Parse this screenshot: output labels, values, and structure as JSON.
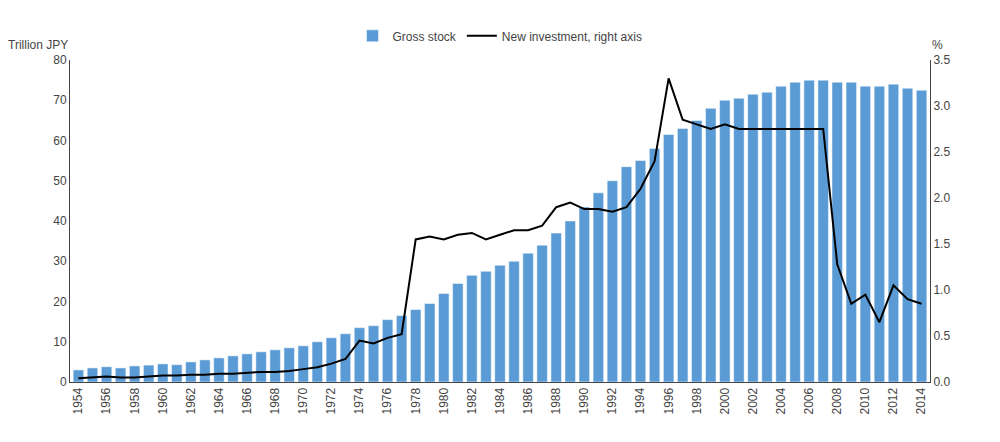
{
  "chart_data": {
    "type": "bar",
    "ylabel": "Trillion JPY",
    "y2label": "%",
    "x": [
      1954,
      1955,
      1956,
      1957,
      1958,
      1959,
      1960,
      1961,
      1962,
      1963,
      1964,
      1965,
      1966,
      1967,
      1968,
      1969,
      1970,
      1971,
      1972,
      1973,
      1974,
      1975,
      1976,
      1977,
      1978,
      1979,
      1980,
      1981,
      1982,
      1983,
      1984,
      1985,
      1986,
      1987,
      1988,
      1989,
      1990,
      1991,
      1992,
      1993,
      1994,
      1995,
      1996,
      1997,
      1998,
      1999,
      2000,
      2001,
      2002,
      2003,
      2004,
      2005,
      2006,
      2007,
      2008,
      2009,
      2010,
      2011,
      2012,
      2013,
      2014
    ],
    "series": [
      {
        "name": "Gross stock",
        "type": "bar",
        "color": "#5b9bd5",
        "values": [
          3.0,
          3.5,
          3.8,
          3.5,
          4.0,
          4.2,
          4.5,
          4.3,
          5.0,
          5.5,
          6.0,
          6.5,
          7.0,
          7.5,
          8.0,
          8.5,
          9.0,
          10.0,
          11.0,
          12.0,
          13.5,
          14.0,
          15.5,
          16.5,
          18.0,
          19.5,
          22.0,
          24.5,
          26.5,
          27.5,
          29.0,
          30.0,
          32.0,
          34.0,
          37.0,
          40.0,
          43.5,
          47.0,
          50.0,
          53.5,
          55.0,
          58.0,
          61.5,
          63.0,
          65.0,
          68.0,
          70.0,
          70.5,
          71.5,
          72.0,
          73.5,
          74.5,
          75.0,
          75.0,
          74.5,
          74.5,
          73.5,
          73.5,
          74.0,
          73.0,
          72.5
        ]
      },
      {
        "name": "New investment, right axis",
        "type": "line",
        "axis": "y2",
        "color": "#000000",
        "values": [
          0.04,
          0.05,
          0.06,
          0.05,
          0.05,
          0.06,
          0.07,
          0.07,
          0.08,
          0.08,
          0.09,
          0.09,
          0.1,
          0.11,
          0.11,
          0.12,
          0.14,
          0.16,
          0.2,
          0.25,
          0.45,
          0.42,
          0.48,
          0.52,
          1.55,
          1.58,
          1.55,
          1.6,
          1.62,
          1.55,
          1.6,
          1.65,
          1.65,
          1.7,
          1.9,
          1.95,
          1.88,
          1.88,
          1.85,
          1.9,
          2.1,
          2.4,
          3.3,
          2.85,
          2.8,
          2.75,
          2.8,
          2.75,
          2.75,
          2.75,
          2.75,
          2.75,
          2.75,
          2.75,
          1.28,
          0.85,
          0.95,
          0.65,
          1.05,
          0.9,
          0.85
        ]
      }
    ],
    "xlim": [
      1953.4,
      2014.6
    ],
    "xticks": [
      1954,
      1956,
      1958,
      1960,
      1962,
      1964,
      1966,
      1968,
      1970,
      1972,
      1974,
      1976,
      1978,
      1980,
      1982,
      1984,
      1986,
      1988,
      1990,
      1992,
      1994,
      1996,
      1998,
      2000,
      2002,
      2004,
      2006,
      2008,
      2010,
      2012,
      2014
    ],
    "ylim": [
      0,
      80
    ],
    "yticks": [
      0,
      10,
      20,
      30,
      40,
      50,
      60,
      70,
      80
    ],
    "y2lim": [
      0,
      3.5
    ],
    "y2ticks": [
      {
        "value": 0,
        "label": "0.0"
      },
      0.5,
      {
        "value": 1,
        "label": "1.0"
      },
      1.5,
      {
        "value": 2,
        "label": "2.0"
      },
      2.5,
      {
        "value": 3,
        "label": "3.0"
      },
      3.5
    ],
    "grid": false,
    "legend": "top"
  }
}
